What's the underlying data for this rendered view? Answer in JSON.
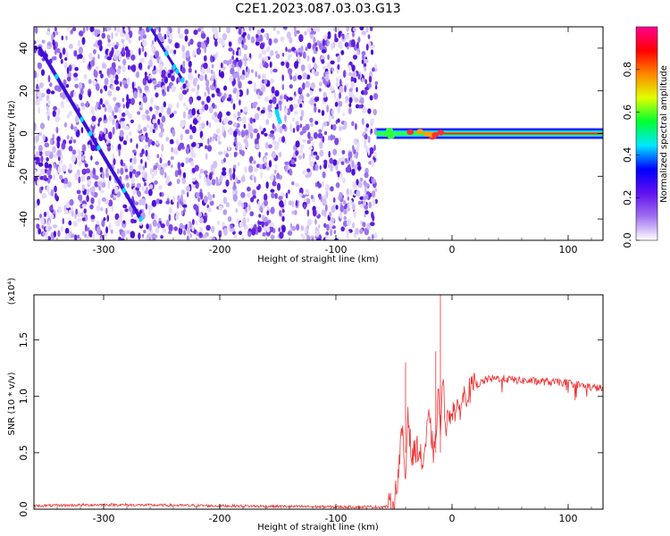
{
  "title": "C2E1.2023.087.03.03.G13",
  "chart_data": [
    {
      "type": "heatmap",
      "title": "",
      "xlabel": "Height of straight line (km)",
      "ylabel": "Frequency (Hz)",
      "xlim": [
        -360,
        130
      ],
      "ylim": [
        -50,
        50
      ],
      "xticks": [
        -300,
        -200,
        -100,
        0,
        100
      ],
      "yticks": [
        -40,
        -20,
        0,
        20,
        40
      ],
      "features": {
        "noise_region": [
          -360,
          -65
        ],
        "diagonal_trace_1": {
          "x": [
            -355,
            -268
          ],
          "y": [
            40,
            -40
          ]
        },
        "diagonal_trace_2": {
          "x": [
            -260,
            -232
          ],
          "y": [
            50,
            25
          ]
        },
        "faint_trace_3": {
          "x": [
            -152,
            -148
          ],
          "y": [
            12,
            5
          ]
        },
        "tone_line": {
          "x": [
            -65,
            130
          ],
          "y": 0
        }
      },
      "colorbar": {
        "label": "Normalized spectral amplitude",
        "range": [
          0.0,
          1.0
        ],
        "ticks": [
          "0.0",
          "0.2",
          "0.4",
          "0.6",
          "0.8"
        ],
        "colors": [
          "#ffffff",
          "#a070f0",
          "#6010f0",
          "#0000ff",
          "#00e8ff",
          "#00ff30",
          "#e0ff00",
          "#ff8800",
          "#ff0000",
          "#ff0090"
        ]
      }
    },
    {
      "type": "line",
      "title": "",
      "xlabel": "Height of straight line (km)",
      "ylabel": "SNR (10 * v/v)",
      "scale_label": "(x10⁴)",
      "xlim": [
        -360,
        130
      ],
      "ylim": [
        0,
        1.9
      ],
      "xticks": [
        -300,
        -200,
        -100,
        0,
        100
      ],
      "yticks": [
        "0.0",
        "0.5",
        "1.0",
        "1.5"
      ],
      "series": [
        {
          "color": "#ee3333",
          "x": [
            -360,
            -300,
            -250,
            -200,
            -150,
            -100,
            -60,
            -50,
            -46,
            -43,
            -40,
            -38,
            -35,
            -30,
            -25,
            -20,
            -15,
            -12,
            -10,
            -8,
            -5,
            0,
            5,
            10,
            15,
            20,
            25,
            30,
            40,
            60,
            80,
            100,
            110,
            120,
            130
          ],
          "y": [
            0.03,
            0.04,
            0.035,
            0.03,
            0.025,
            0.02,
            0.02,
            0.03,
            0.35,
            0.7,
            0.25,
            0.9,
            0.45,
            0.55,
            0.4,
            0.8,
            0.45,
            1.05,
            0.7,
            1.1,
            0.75,
            0.9,
            0.85,
            1.0,
            1.05,
            1.1,
            1.12,
            1.15,
            1.16,
            1.14,
            1.13,
            1.12,
            1.1,
            1.08,
            1.07
          ]
        }
      ]
    }
  ]
}
